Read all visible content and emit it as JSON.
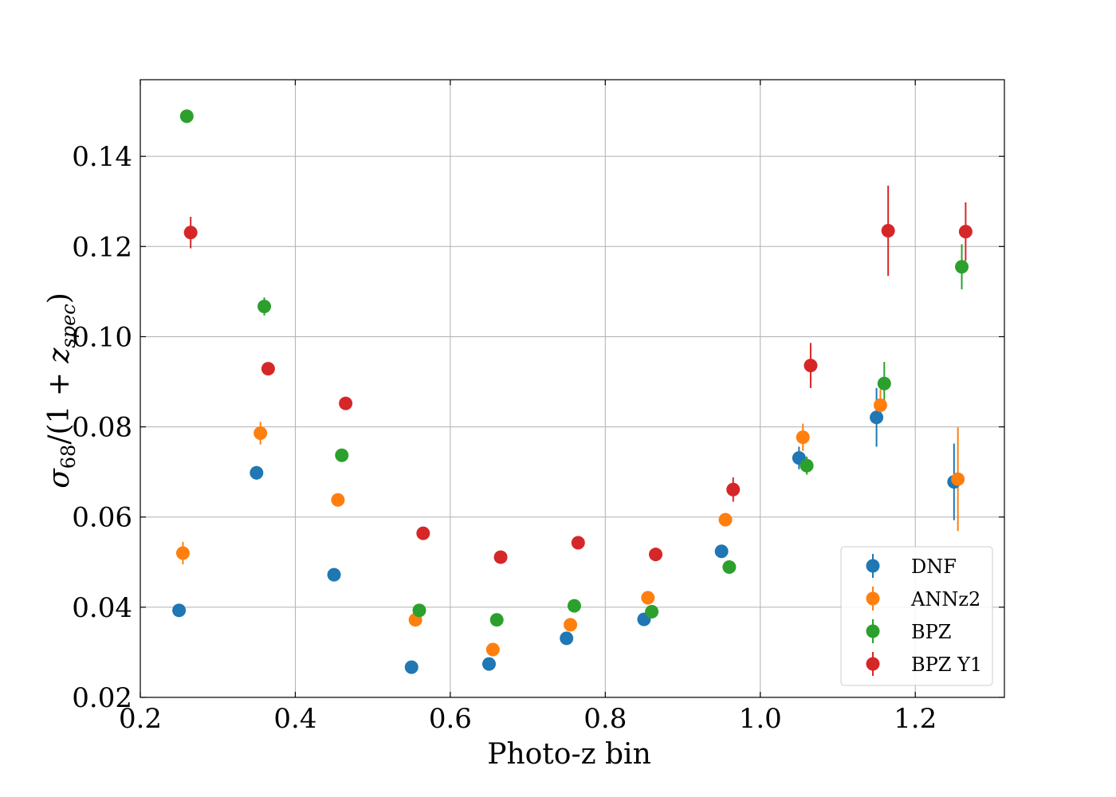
{
  "chart_data": {
    "type": "scatter",
    "title": "",
    "xlabel": "Photo-z bin",
    "ylabel": "σ68/(1 + zspec)",
    "xlim": [
      0.2,
      1.315
    ],
    "ylim": [
      0.02,
      0.157
    ],
    "xticks": [
      "0.2",
      "0.4",
      "0.6",
      "0.8",
      "1.0",
      "1.2"
    ],
    "yticks": [
      "0.02",
      "0.04",
      "0.06",
      "0.08",
      "0.10",
      "0.12",
      "0.14"
    ],
    "grid": true,
    "legend_position": "lower-right",
    "series": [
      {
        "name": "DNF",
        "color": "#1f77b4",
        "x": [
          0.25,
          0.35,
          0.45,
          0.55,
          0.65,
          0.75,
          0.85,
          0.95,
          1.05,
          1.15,
          1.25
        ],
        "y": [
          0.0393,
          0.0698,
          0.0472,
          0.0267,
          0.0274,
          0.0331,
          0.0373,
          0.0524,
          0.0731,
          0.0821,
          0.0678
        ],
        "yerr": [
          0.0008,
          0.0015,
          0.0008,
          0.0005,
          0.0005,
          0.0006,
          0.0008,
          0.0012,
          0.0025,
          0.0065,
          0.0085
        ]
      },
      {
        "name": "ANNz2",
        "color": "#ff7f0e",
        "x": [
          0.255,
          0.355,
          0.455,
          0.555,
          0.655,
          0.755,
          0.855,
          0.955,
          1.055,
          1.155,
          1.255
        ],
        "y": [
          0.052,
          0.0786,
          0.0638,
          0.0372,
          0.0306,
          0.0361,
          0.0421,
          0.0594,
          0.0777,
          0.0848,
          0.0684
        ],
        "yerr": [
          0.0025,
          0.0025,
          0.0012,
          0.0008,
          0.0006,
          0.0008,
          0.001,
          0.0012,
          0.003,
          0.0035,
          0.0115
        ]
      },
      {
        "name": "BPZ",
        "color": "#2ca02c",
        "x": [
          0.26,
          0.36,
          0.46,
          0.56,
          0.66,
          0.76,
          0.86,
          0.96,
          1.06,
          1.16,
          1.26
        ],
        "y": [
          0.1489,
          0.1067,
          0.0737,
          0.0393,
          0.0372,
          0.0403,
          0.039,
          0.0489,
          0.0714,
          0.0896,
          0.1155
        ],
        "yerr": [
          0.0015,
          0.002,
          0.001,
          0.0006,
          0.0005,
          0.0007,
          0.0008,
          0.0007,
          0.002,
          0.0048,
          0.005
        ]
      },
      {
        "name": "BPZ Y1",
        "color": "#d62728",
        "x": [
          0.265,
          0.365,
          0.465,
          0.565,
          0.665,
          0.765,
          0.865,
          0.965,
          1.065,
          1.165,
          1.265
        ],
        "y": [
          0.1231,
          0.0929,
          0.0852,
          0.0564,
          0.0511,
          0.0543,
          0.0517,
          0.0661,
          0.0936,
          0.1235,
          0.1233
        ],
        "yerr": [
          0.0035,
          0.001,
          0.0008,
          0.0008,
          0.0006,
          0.0008,
          0.0015,
          0.0027,
          0.005,
          0.01,
          0.0065
        ]
      }
    ]
  }
}
